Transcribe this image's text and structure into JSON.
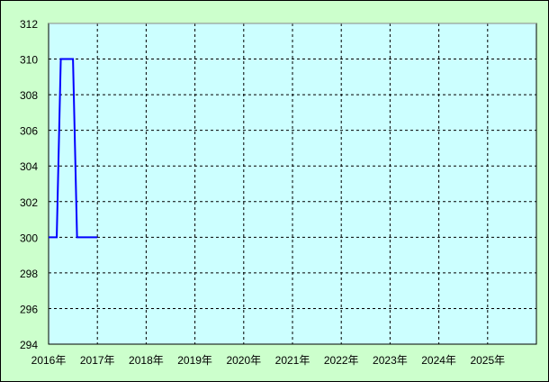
{
  "chart_data": {
    "type": "line",
    "title": "",
    "xlabel": "",
    "ylabel": "",
    "xlim": [
      "2016-01",
      "2026-01"
    ],
    "ylim": [
      294,
      312
    ],
    "yticks": [
      294,
      296,
      298,
      300,
      302,
      304,
      306,
      308,
      310,
      312
    ],
    "xticks": [
      "2016年",
      "2017年",
      "2018年",
      "2019年",
      "2020年",
      "2021年",
      "2022年",
      "2023年",
      "2024年",
      "2025年"
    ],
    "grid": true,
    "colors": {
      "background": "#ccffcc",
      "plot": "#ccffff",
      "line": "#0000ff"
    },
    "series": [
      {
        "x": [
          "2016-01",
          "2016-02",
          "2016-03",
          "2016-04",
          "2016-05",
          "2016-06",
          "2016-07",
          "2016-08",
          "2016-09",
          "2016-10",
          "2016-11",
          "2016-12",
          "2017-01"
        ],
        "values": [
          300,
          300,
          300,
          310,
          310,
          310,
          310,
          300,
          300,
          300,
          300,
          300,
          300
        ]
      }
    ]
  }
}
